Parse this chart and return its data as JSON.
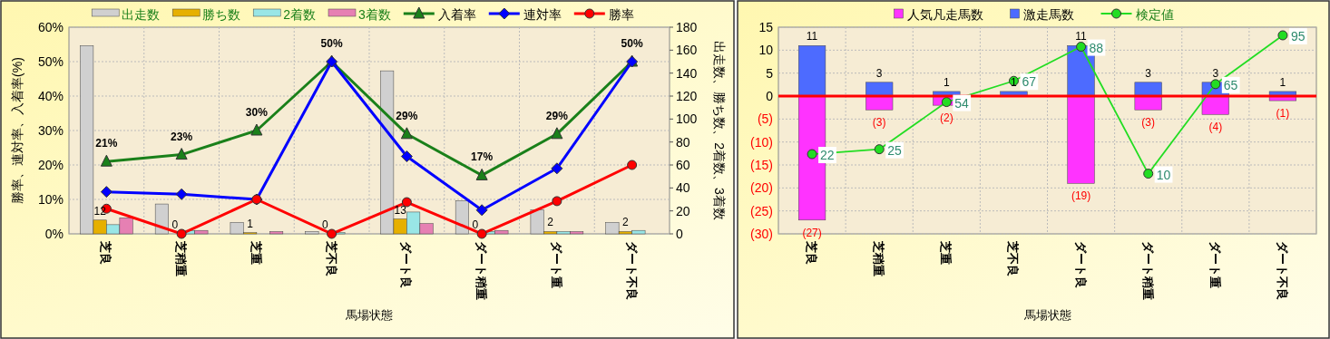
{
  "chart_data": [
    {
      "type": "bar",
      "categories": [
        "芝良",
        "芝稍重",
        "芝重",
        "芝不良",
        "ダート良",
        "ダート稍重",
        "ダート重",
        "ダート不良"
      ],
      "xlabel": "馬場状態",
      "ylabel": "勝率、連対率、入着率(%)",
      "y2label": "出走数、勝ち数、2着数、3着数",
      "ylim": [
        0,
        60
      ],
      "yticks": [
        {
          "value": 0,
          "label": "0%"
        },
        {
          "value": 10,
          "label": "10%"
        },
        {
          "value": 20,
          "label": "20%"
        },
        {
          "value": 30,
          "label": "30%"
        },
        {
          "value": 40,
          "label": "40%"
        },
        {
          "value": 50,
          "label": "50%"
        },
        {
          "value": 60,
          "label": "60%"
        }
      ],
      "y2lim": [
        0,
        180
      ],
      "y2ticks": [
        0,
        20,
        40,
        60,
        80,
        100,
        120,
        140,
        160,
        180
      ],
      "grid": true,
      "legend": "top",
      "series": [
        {
          "name": "出走数",
          "axis": "y2",
          "color": "#d0d0d0",
          "values": [
            164,
            26,
            10,
            2,
            142,
            29,
            21,
            10
          ]
        },
        {
          "name": "勝ち数",
          "axis": "y2",
          "color": "#e6b000",
          "values": [
            12,
            0,
            1,
            0,
            13,
            0,
            2,
            2
          ],
          "value_labels": [
            "12",
            "0",
            "1",
            "0",
            "13",
            "0",
            "2",
            "2"
          ]
        },
        {
          "name": "2着数",
          "axis": "y2",
          "color": "#99e6e6",
          "values": [
            8,
            3,
            0,
            1,
            19,
            2,
            2,
            3
          ]
        },
        {
          "name": "3着数",
          "axis": "y2",
          "color": "#e680b3",
          "values": [
            14,
            3,
            2,
            0,
            9,
            3,
            2,
            0
          ]
        },
        {
          "name": "入着率",
          "type": "line",
          "color": "#1a801a",
          "marker": "triangle",
          "values": [
            21,
            23,
            30,
            50,
            29,
            17,
            29,
            50
          ],
          "value_labels": [
            "21%",
            "23%",
            "30%",
            "50%",
            "29%",
            "17%",
            "29%",
            "50%"
          ]
        },
        {
          "name": "連対率",
          "type": "line",
          "color": "#0000ff",
          "marker": "diamond",
          "values": [
            12.2,
            11.5,
            10,
            50,
            22.5,
            6.9,
            19,
            50
          ]
        },
        {
          "name": "勝率",
          "type": "line",
          "color": "#ff0000",
          "marker": "circle",
          "values": [
            7.3,
            0,
            10,
            0,
            9.2,
            0,
            9.5,
            20
          ]
        }
      ]
    },
    {
      "type": "bar",
      "stacked": true,
      "categories": [
        "芝良",
        "芝稍重",
        "芝重",
        "芝不良",
        "ダート良",
        "ダート稍重",
        "ダート重",
        "ダート不良"
      ],
      "xlabel": "馬場状態",
      "ylim": [
        -30,
        15
      ],
      "yticks": [
        15,
        10,
        5,
        0,
        {
          "value": -5,
          "label": "(5)"
        },
        {
          "value": -10,
          "label": "(10)"
        },
        {
          "value": -15,
          "label": "(15)"
        },
        {
          "value": -20,
          "label": "(20)"
        },
        {
          "value": -25,
          "label": "(25)"
        },
        {
          "value": -30,
          "label": "(30)"
        }
      ],
      "y2lim": [
        -27,
        100
      ],
      "grid": true,
      "legend": "top",
      "ref_lines": [
        {
          "axis": "y",
          "value": 0,
          "color": "#ff0000"
        }
      ],
      "series": [
        {
          "name": "人気凡走馬数",
          "color": "#ff33ff",
          "values": [
            -27,
            -3,
            -2,
            0,
            -19,
            -3,
            -4,
            -1
          ],
          "value_labels": [
            "(27)",
            "(3)",
            "(2)",
            null,
            "(19)",
            "(3)",
            "(4)",
            "(1)"
          ]
        },
        {
          "name": "激走馬数",
          "color": "#4d6bff",
          "values": [
            11,
            3,
            1,
            1,
            11,
            3,
            3,
            1
          ],
          "value_labels": [
            "11",
            "3",
            "1",
            "1",
            "11",
            "3",
            "3",
            "1"
          ]
        },
        {
          "name": "検定値",
          "type": "line",
          "axis": "y2",
          "color": "#22dd22",
          "marker": "circle",
          "values": [
            22,
            25,
            54,
            67,
            88,
            10,
            65,
            95
          ],
          "value_labels": [
            "22",
            "25",
            "54",
            "67",
            "88",
            "10",
            "65",
            "95"
          ]
        }
      ]
    }
  ]
}
